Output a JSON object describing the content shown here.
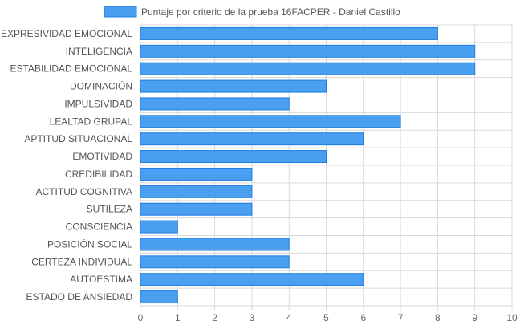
{
  "chart_data": {
    "type": "bar",
    "orientation": "horizontal",
    "legend": {
      "label": "Puntaje por criterio de la prueba 16FACPER - Daniel Castillo",
      "position": "top"
    },
    "categories": [
      "EXPRESIVIDAD EMOCIONAL",
      "INTELIGENCIA",
      "ESTABILIDAD EMOCIONAL",
      "DOMINACIÓN",
      "IMPULSIVIDAD",
      "LEALTAD GRUPAL",
      "APTITUD SITUACIONAL",
      "EMOTIVIDAD",
      "CREDIBILIDAD",
      "ACTITUD COGNITIVA",
      "SUTILEZA",
      "CONSCIENCIA",
      "POSICIÓN SOCIAL",
      "CERTEZA INDIVIDUAL",
      "AUTOESTIMA",
      "ESTADO DE ANSIEDAD"
    ],
    "series": [
      {
        "name": "Puntaje por criterio de la prueba 16FACPER - Daniel Castillo",
        "values": [
          8,
          9,
          9,
          5,
          4,
          7,
          6,
          5,
          3,
          3,
          3,
          1,
          4,
          4,
          6,
          1
        ]
      }
    ],
    "xlim": [
      0,
      10
    ],
    "xticks": [
      "0",
      "1",
      "2",
      "3",
      "4",
      "5",
      "6",
      "7",
      "8",
      "9",
      "10"
    ],
    "grid": true,
    "colors": {
      "bar_fill": "#4a9ff0",
      "bar_stroke": "#1e7de0",
      "grid": "#d9d9d9"
    }
  }
}
